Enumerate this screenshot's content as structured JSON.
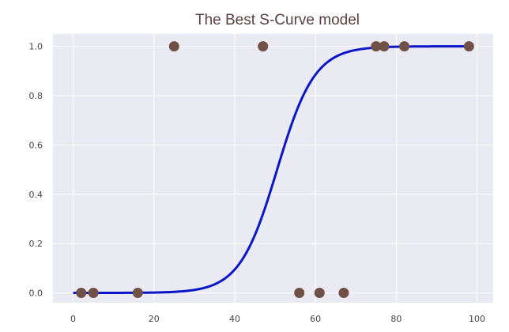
{
  "chart_data": {
    "type": "scatter",
    "title": "The Best S-Curve model",
    "xlabel": "",
    "ylabel": "",
    "xlim": [
      -5,
      104
    ],
    "ylim": [
      -0.04,
      1.05
    ],
    "x_ticks": [
      0,
      20,
      40,
      60,
      80,
      100
    ],
    "x_tick_labels": [
      "0",
      "20",
      "40",
      "60",
      "80",
      "100"
    ],
    "y_ticks": [
      0.0,
      0.2,
      0.4,
      0.6,
      0.8,
      1.0
    ],
    "y_tick_labels": [
      "0.0",
      "0.2",
      "0.4",
      "0.6",
      "0.8",
      "1.0"
    ],
    "grid": true,
    "series": [
      {
        "kind": "points",
        "color": "#705047",
        "points": [
          {
            "x": 2,
            "y": 0
          },
          {
            "x": 5,
            "y": 0
          },
          {
            "x": 16,
            "y": 0
          },
          {
            "x": 25,
            "y": 1
          },
          {
            "x": 47,
            "y": 1
          },
          {
            "x": 56,
            "y": 0
          },
          {
            "x": 61,
            "y": 0
          },
          {
            "x": 67,
            "y": 0
          },
          {
            "x": 75,
            "y": 1
          },
          {
            "x": 77,
            "y": 1
          },
          {
            "x": 82,
            "y": 1
          },
          {
            "x": 98,
            "y": 1
          }
        ]
      },
      {
        "kind": "curve",
        "color": "#0b16c8",
        "model": "logistic",
        "midpoint": 50.5,
        "slope": 0.215,
        "x_range": [
          0,
          98
        ]
      }
    ],
    "background": "#eaeaf2",
    "grid_color": "#ffffff"
  }
}
